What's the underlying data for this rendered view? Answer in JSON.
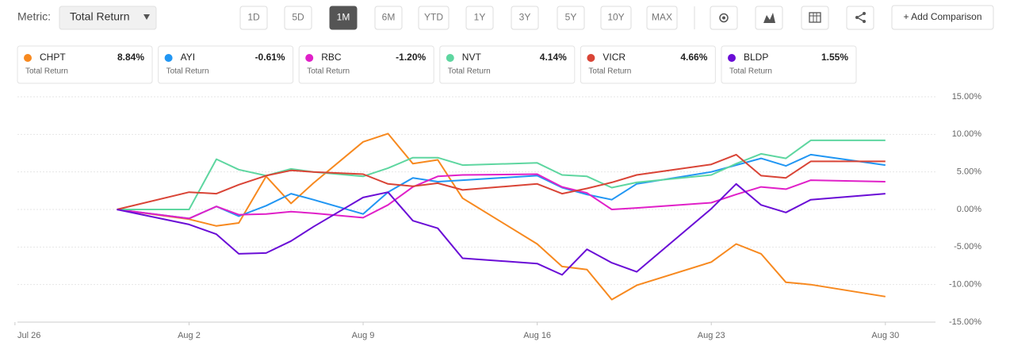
{
  "toolbar": {
    "metric_label": "Metric:",
    "metric_value": "Total Return",
    "ranges": [
      "1D",
      "5D",
      "1M",
      "6M",
      "YTD",
      "1Y",
      "3Y",
      "5Y",
      "10Y",
      "MAX"
    ],
    "active_range": 2,
    "add_comparison": "+ Add Comparison"
  },
  "cards": [
    {
      "value": "8.84%",
      "caption": "Total Return"
    },
    {
      "value": "-0.61%",
      "caption": "Total Return"
    },
    {
      "value": "-1.20%",
      "caption": "Total Return"
    },
    {
      "value": "4.14%",
      "caption": "Total Return"
    },
    {
      "value": "4.66%",
      "caption": "Total Return"
    },
    {
      "value": "1.55%",
      "caption": "Total Return"
    }
  ],
  "chart_data": {
    "type": "line",
    "x": [
      3.5,
      6.4,
      7.5,
      8.4,
      9.5,
      10.5,
      11.4,
      13.4,
      14.4,
      15.4,
      16.4,
      17.4,
      20.4,
      21.4,
      22.4,
      23.4,
      24.4,
      27.4,
      28.4,
      29.4,
      30.4,
      31.4,
      34.4
    ],
    "xlim": [
      -0.5,
      36
    ],
    "xticks": [
      {
        "value": -0.6,
        "label": "Jul 26"
      },
      {
        "value": 6.4,
        "label": "Aug 2"
      },
      {
        "value": 13.4,
        "label": "Aug 9"
      },
      {
        "value": 20.4,
        "label": "Aug 16"
      },
      {
        "value": 27.4,
        "label": "Aug 23"
      },
      {
        "value": 34.4,
        "label": "Aug 30"
      }
    ],
    "ylim": [
      -15,
      15
    ],
    "yticks": [
      {
        "value": -15,
        "label": "-15.00%"
      },
      {
        "value": -10,
        "label": "-10.00%"
      },
      {
        "value": -5,
        "label": "-5.00%"
      },
      {
        "value": 0,
        "label": "0.00%"
      },
      {
        "value": 5,
        "label": "5.00%"
      },
      {
        "value": 10,
        "label": "10.00%"
      },
      {
        "value": 15,
        "label": "15.00%"
      }
    ],
    "grid": true,
    "series": [
      {
        "name": "CHPT",
        "color": "#f7891f",
        "values": [
          0,
          -1.3,
          -2.2,
          -1.8,
          4.4,
          0.8,
          3.5,
          9.0,
          10.1,
          6.1,
          6.6,
          1.5,
          -4.6,
          -7.6,
          -8.0,
          -12.0,
          -10.1,
          -7.0,
          -4.6,
          -5.9,
          -9.7,
          -10.0,
          -11.6
        ]
      },
      {
        "name": "AYI",
        "color": "#2196f3",
        "values": [
          0,
          -1.2,
          0.4,
          -0.9,
          0.5,
          2.1,
          1.3,
          -0.6,
          2.3,
          4.2,
          3.7,
          3.9,
          4.5,
          2.9,
          2.0,
          1.3,
          3.4,
          5.0,
          5.9,
          6.8,
          5.8,
          7.3,
          5.9
        ]
      },
      {
        "name": "RBC",
        "color": "#e020c8",
        "values": [
          0,
          -1.2,
          0.4,
          -0.7,
          -0.6,
          -0.3,
          -0.5,
          -1.1,
          0.6,
          3.0,
          4.4,
          4.6,
          4.7,
          3.0,
          2.2,
          0.0,
          0.2,
          0.9,
          2.0,
          3.0,
          2.7,
          3.9,
          3.7
        ]
      },
      {
        "name": "NVT",
        "color": "#5ed6a0",
        "values": [
          0,
          0.0,
          6.7,
          5.3,
          4.5,
          5.4,
          5.0,
          4.4,
          5.5,
          6.9,
          6.9,
          5.9,
          6.2,
          4.6,
          4.4,
          2.9,
          3.6,
          4.6,
          6.1,
          7.4,
          6.8,
          9.2,
          9.2
        ]
      },
      {
        "name": "VICR",
        "color": "#d94436",
        "values": [
          0,
          2.3,
          2.1,
          3.3,
          4.5,
          5.2,
          5.0,
          4.7,
          3.4,
          3.1,
          3.5,
          2.6,
          3.4,
          2.1,
          2.8,
          3.6,
          4.6,
          6.0,
          7.3,
          4.5,
          4.2,
          6.4,
          6.4
        ]
      },
      {
        "name": "BLDP",
        "color": "#6a0dd6",
        "values": [
          0,
          -2.0,
          -3.3,
          -5.9,
          -5.8,
          -4.2,
          -2.3,
          1.6,
          2.3,
          -1.5,
          -2.5,
          -6.5,
          -7.2,
          -8.7,
          -5.3,
          -7.1,
          -8.3,
          0.1,
          3.4,
          0.6,
          -0.4,
          1.3,
          2.1
        ]
      }
    ]
  }
}
